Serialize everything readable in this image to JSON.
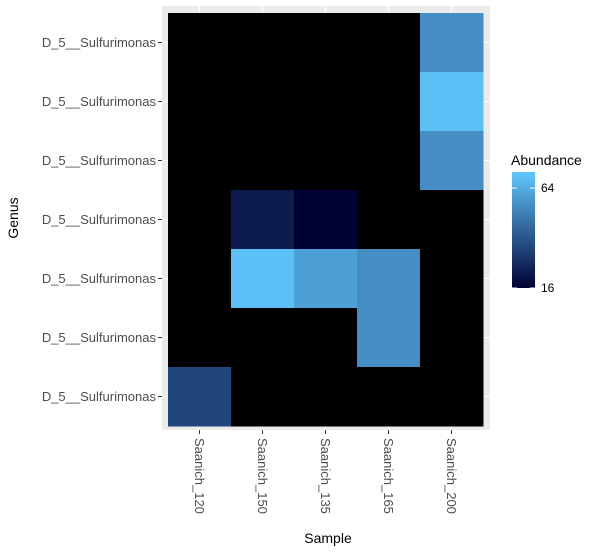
{
  "chart_data": {
    "type": "heatmap",
    "title": "",
    "xlabel": "Sample",
    "ylabel": "Genus",
    "x": [
      "Saanich_120",
      "Saanich_150",
      "Saanich_135",
      "Saanich_165",
      "Saanich_200"
    ],
    "y": [
      "D_5__Sulfurimonas",
      "D_5__Sulfurimonas",
      "D_5__Sulfurimonas",
      "D_5__Sulfurimonas",
      "D_5__Sulfurimonas",
      "D_5__Sulfurimonas",
      "D_5__Sulfurimonas"
    ],
    "y_order": "top-to-bottom",
    "values": [
      [
        0,
        0,
        0,
        0,
        50
      ],
      [
        0,
        0,
        0,
        0,
        75
      ],
      [
        0,
        0,
        0,
        0,
        50
      ],
      [
        0,
        20,
        16,
        0,
        0
      ],
      [
        0,
        75,
        58,
        50,
        0
      ],
      [
        0,
        0,
        0,
        50,
        0
      ],
      [
        28,
        0,
        0,
        0,
        0
      ]
    ],
    "zero_color": "#000000",
    "colorbar": {
      "title": "Abundance",
      "scale": "log",
      "min": 16,
      "max": 80,
      "low_color": "#000033",
      "high_color": "#60C8FF",
      "ticks": [
        16,
        64
      ],
      "tick_labels": [
        "16",
        "64"
      ]
    },
    "panel_background": "#EBEBEB"
  }
}
